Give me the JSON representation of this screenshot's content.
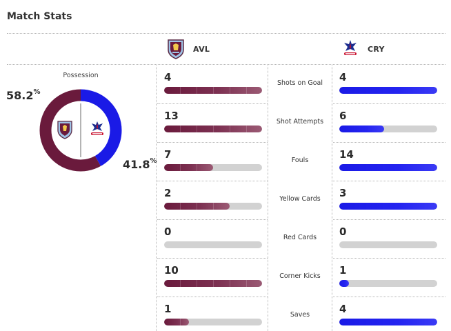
{
  "header": {
    "title": "Match Stats"
  },
  "teams": {
    "home": {
      "abbr": "AVL",
      "color": "#6a1a3c"
    },
    "away": {
      "abbr": "CRY",
      "color": "#1a1ae6"
    }
  },
  "possession": {
    "label": "Possession",
    "home_value": "58.2",
    "away_value": "41.8",
    "suffix": "%",
    "home_fraction": 0.582,
    "away_fraction": 0.418
  },
  "stats": [
    {
      "label": "Shots on Goal",
      "home": 4,
      "away": 4,
      "home_fraction": 1.0,
      "away_fraction": 1.0
    },
    {
      "label": "Shot Attempts",
      "home": 13,
      "away": 6,
      "home_fraction": 1.0,
      "away_fraction": 0.46
    },
    {
      "label": "Fouls",
      "home": 7,
      "away": 14,
      "home_fraction": 0.5,
      "away_fraction": 1.0
    },
    {
      "label": "Yellow Cards",
      "home": 2,
      "away": 3,
      "home_fraction": 0.67,
      "away_fraction": 1.0
    },
    {
      "label": "Red Cards",
      "home": 0,
      "away": 0,
      "home_fraction": 0.0,
      "away_fraction": 0.0
    },
    {
      "label": "Corner Kicks",
      "home": 10,
      "away": 1,
      "home_fraction": 1.0,
      "away_fraction": 0.1
    },
    {
      "label": "Saves",
      "home": 1,
      "away": 4,
      "home_fraction": 0.25,
      "away_fraction": 1.0
    }
  ]
}
